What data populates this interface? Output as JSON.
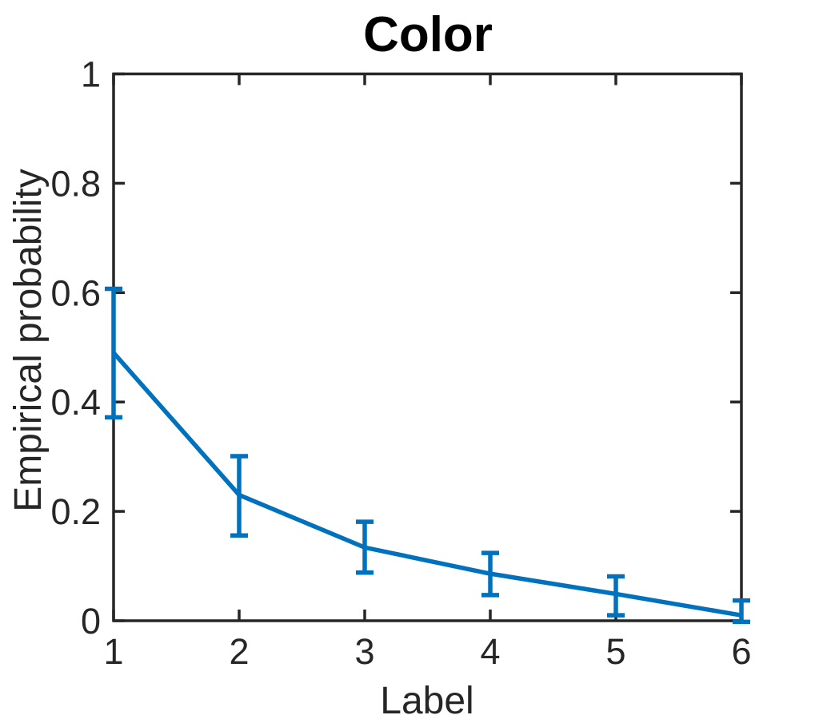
{
  "chart_data": {
    "type": "line",
    "title": "Color",
    "xlabel": "Label",
    "ylabel": "Empirical probability",
    "x": [
      1,
      2,
      3,
      4,
      5,
      6
    ],
    "series": [
      {
        "name": "empirical probability",
        "values": [
          0.49,
          0.23,
          0.134,
          0.086,
          0.049,
          0.01
        ],
        "err_low": [
          0.372,
          0.156,
          0.088,
          0.047,
          0.01,
          -0.002
        ],
        "err_high": [
          0.607,
          0.301,
          0.181,
          0.124,
          0.081,
          0.037
        ]
      }
    ],
    "error_bars": true,
    "xlim": [
      1,
      6
    ],
    "ylim": [
      0,
      1
    ],
    "xticks": {
      "values": [
        1,
        2,
        3,
        4,
        5,
        6
      ],
      "labels": [
        "1",
        "2",
        "3",
        "4",
        "5",
        "6"
      ]
    },
    "yticks": {
      "values": [
        0,
        0.2,
        0.4,
        0.6,
        0.8,
        1
      ],
      "labels": [
        "0",
        "0.2",
        "0.4",
        "0.6",
        "0.8",
        "1"
      ]
    },
    "grid": false,
    "box": true,
    "tick_direction": "in",
    "colors": {
      "line": "#0072BD",
      "axis": "#262626",
      "tick_label": "#262626",
      "title": "#000000",
      "background": "#ffffff"
    }
  }
}
